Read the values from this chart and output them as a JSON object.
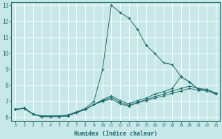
{
  "xlabel": "Humidex (Indice chaleur)",
  "ylabel": "",
  "bg_color": "#c8e8e8",
  "grid_color": "#ffffff",
  "line_color": "#1a6b6b",
  "xlim": [
    -0.5,
    23.5
  ],
  "ylim": [
    5.8,
    13.2
  ],
  "xticks": [
    0,
    1,
    2,
    3,
    4,
    5,
    6,
    7,
    8,
    9,
    10,
    11,
    12,
    13,
    14,
    15,
    16,
    17,
    18,
    19,
    20,
    21,
    22,
    23
  ],
  "yticks": [
    6,
    7,
    8,
    9,
    10,
    11,
    12,
    13
  ],
  "curves": [
    {
      "x": [
        0,
        1,
        2,
        3,
        4,
        5,
        6,
        7,
        8,
        9,
        10,
        11,
        12,
        13,
        14,
        15,
        16,
        17,
        18,
        19,
        20,
        21,
        22,
        23
      ],
      "y": [
        6.5,
        6.6,
        6.2,
        6.1,
        6.1,
        6.1,
        6.15,
        6.35,
        6.55,
        7.0,
        9.0,
        13.0,
        12.55,
        12.2,
        11.5,
        10.5,
        10.0,
        9.4,
        9.3,
        8.55,
        8.2,
        7.75,
        7.75,
        7.5
      ]
    },
    {
      "x": [
        0,
        1,
        2,
        3,
        4,
        5,
        6,
        7,
        8,
        9,
        10,
        11,
        12,
        13,
        14,
        15,
        16,
        17,
        18,
        19,
        20,
        21,
        22,
        23
      ],
      "y": [
        6.5,
        6.55,
        6.2,
        6.05,
        6.05,
        6.05,
        6.1,
        6.3,
        6.5,
        6.8,
        7.1,
        7.35,
        7.05,
        6.85,
        7.05,
        7.2,
        7.45,
        7.6,
        7.8,
        8.55,
        8.2,
        7.75,
        7.75,
        7.5
      ]
    },
    {
      "x": [
        0,
        1,
        2,
        3,
        4,
        5,
        6,
        7,
        8,
        9,
        10,
        11,
        12,
        13,
        14,
        15,
        16,
        17,
        18,
        19,
        20,
        21,
        22,
        23
      ],
      "y": [
        6.5,
        6.55,
        6.2,
        6.05,
        6.05,
        6.05,
        6.1,
        6.3,
        6.5,
        6.8,
        7.05,
        7.25,
        6.95,
        6.75,
        6.95,
        7.1,
        7.3,
        7.45,
        7.65,
        7.8,
        7.95,
        7.8,
        7.75,
        7.5
      ]
    },
    {
      "x": [
        0,
        1,
        2,
        3,
        4,
        5,
        6,
        7,
        8,
        9,
        10,
        11,
        12,
        13,
        14,
        15,
        16,
        17,
        18,
        19,
        20,
        21,
        22,
        23
      ],
      "y": [
        6.5,
        6.55,
        6.2,
        6.05,
        6.05,
        6.05,
        6.1,
        6.3,
        6.5,
        6.8,
        7.0,
        7.15,
        6.85,
        6.7,
        6.9,
        7.05,
        7.2,
        7.35,
        7.5,
        7.65,
        7.8,
        7.7,
        7.65,
        7.45
      ]
    }
  ]
}
